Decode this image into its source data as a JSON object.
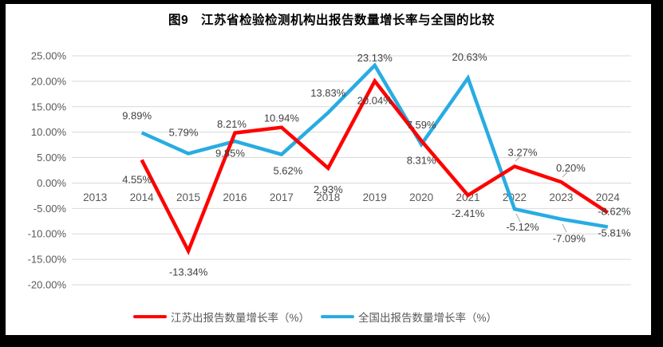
{
  "chart_data": {
    "type": "line",
    "title": "图9　江苏省检验检测机构出报告数量增长率与全国的比较",
    "xlabel": "",
    "ylabel": "",
    "categories": [
      "2013",
      "2014",
      "2015",
      "2016",
      "2017",
      "2018",
      "2019",
      "2020",
      "2021",
      "2022",
      "2023",
      "2024"
    ],
    "series": [
      {
        "name": "江苏出报告数量增长率（%）",
        "color": "#FF0000",
        "values": [
          null,
          4.55,
          -13.34,
          9.85,
          10.94,
          2.93,
          20.04,
          8.31,
          -2.41,
          3.27,
          0.2,
          -5.81
        ],
        "label_pos": [
          null,
          "below",
          "below",
          "below",
          "above",
          "below",
          "below",
          "below",
          "below",
          "above",
          "above",
          "below"
        ],
        "label_dx": [
          0,
          -6,
          0,
          -6,
          0,
          0,
          0,
          0,
          0,
          10,
          12,
          8
        ],
        "label_dy": [
          0,
          2,
          4,
          3,
          6,
          4,
          2,
          2,
          0,
          0,
          0,
          3
        ]
      },
      {
        "name": "全国出报告数量增长率（%）",
        "color": "#28ACE2",
        "values": [
          null,
          9.89,
          5.79,
          8.21,
          5.62,
          13.83,
          23.13,
          7.59,
          20.63,
          -5.12,
          -7.09,
          -8.62
        ],
        "label_pos": [
          null,
          "above",
          "above",
          "above",
          "below",
          "above",
          "above",
          "above",
          "above",
          "below",
          "below",
          "above"
        ],
        "label_dx": [
          0,
          -6,
          -6,
          -4,
          8,
          0,
          0,
          0,
          2,
          10,
          10,
          8
        ],
        "label_dy": [
          0,
          -4,
          -9,
          -4,
          -2,
          -7,
          8,
          -7,
          -9,
          0,
          2,
          -2
        ]
      }
    ],
    "ylim": [
      -20,
      25
    ],
    "y_tick_step": 5,
    "y_ticks": [
      {
        "label": "25.00%",
        "value": 25
      },
      {
        "label": "20.00%",
        "value": 20
      },
      {
        "label": "15.00%",
        "value": 15
      },
      {
        "label": "10.00%",
        "value": 10
      },
      {
        "label": "5.00%",
        "value": 5
      },
      {
        "label": "0.00%",
        "value": 0
      },
      {
        "label": "-5.00%",
        "value": -5
      },
      {
        "label": "-10.00%",
        "value": -10
      },
      {
        "label": "-15.00%",
        "value": -15
      },
      {
        "label": "-20.00%",
        "value": -20
      }
    ],
    "grid": "horizontal",
    "gridline_color": "#D9D9D9",
    "data_label_format": "0.00%",
    "legend_position": "bottom",
    "line_width": 4.5,
    "leader_lines": [
      [
        646,
        202,
        652,
        196
      ],
      [
        705,
        222,
        711,
        216
      ],
      [
        647,
        268,
        652,
        278
      ],
      [
        705,
        281,
        710,
        291
      ]
    ]
  }
}
